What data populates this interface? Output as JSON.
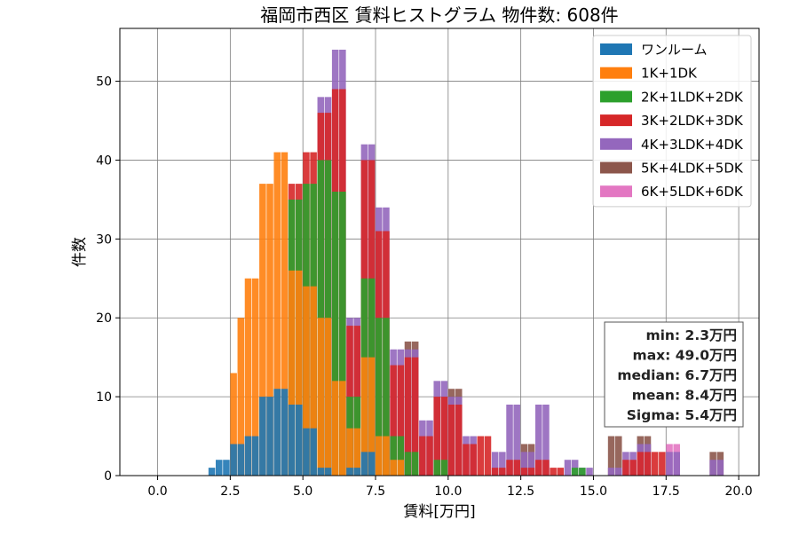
{
  "chart_data": {
    "type": "bar",
    "stacked": true,
    "title": "福岡市西区 賃料ヒストグラム 物件数: 608件",
    "xlabel": "賃料[万円]",
    "ylabel": "件数",
    "xlim": [
      -1.3,
      20.7
    ],
    "ylim": [
      0,
      56.7
    ],
    "x_ticks": [
      0,
      2.5,
      5,
      7.5,
      10,
      12.5,
      15,
      17.5,
      20
    ],
    "x_tick_labels": [
      "0.0",
      "2.5",
      "5.0",
      "7.5",
      "10.0",
      "12.5",
      "15.0",
      "17.5",
      "20.0"
    ],
    "y_ticks": [
      0,
      10,
      20,
      30,
      40,
      50
    ],
    "y_tick_labels": [
      "0",
      "10",
      "20",
      "30",
      "40",
      "50"
    ],
    "grid": true,
    "legend_position": "top-right",
    "bin_width": 0.25,
    "bar_width": 0.23,
    "series": [
      {
        "name": "ワンルーム",
        "color": "#1f77b4",
        "values": [
          [
            2.0,
            1
          ],
          [
            2.25,
            2
          ],
          [
            2.5,
            2
          ],
          [
            2.75,
            4
          ],
          [
            3.0,
            4
          ],
          [
            3.25,
            5
          ],
          [
            3.5,
            5
          ],
          [
            3.75,
            10
          ],
          [
            4.0,
            10
          ],
          [
            4.25,
            11
          ],
          [
            4.5,
            11
          ],
          [
            4.75,
            9
          ],
          [
            5.0,
            9
          ],
          [
            5.25,
            6
          ],
          [
            5.5,
            6
          ],
          [
            5.75,
            1
          ],
          [
            6.0,
            1
          ],
          [
            6.25,
            0
          ],
          [
            6.5,
            0
          ],
          [
            6.75,
            1
          ],
          [
            7.0,
            1
          ],
          [
            7.25,
            3
          ],
          [
            7.5,
            3
          ]
        ]
      },
      {
        "name": "1K+1DK",
        "color": "#ff7f0e",
        "values": [
          [
            2.75,
            13
          ],
          [
            3.0,
            20
          ],
          [
            3.25,
            25
          ],
          [
            3.5,
            25
          ],
          [
            3.75,
            37
          ],
          [
            4.0,
            37
          ],
          [
            4.25,
            41
          ],
          [
            4.5,
            41
          ],
          [
            4.75,
            26
          ],
          [
            5.0,
            26
          ],
          [
            5.25,
            24
          ],
          [
            5.5,
            24
          ],
          [
            5.75,
            20
          ],
          [
            6.0,
            20
          ],
          [
            6.25,
            12
          ],
          [
            6.5,
            12
          ],
          [
            6.75,
            6
          ],
          [
            7.0,
            6
          ],
          [
            7.25,
            15
          ],
          [
            7.5,
            15
          ],
          [
            7.75,
            5
          ],
          [
            8.0,
            5
          ],
          [
            8.25,
            2
          ],
          [
            8.5,
            2
          ]
        ]
      },
      {
        "name": "2K+1LDK+2DK",
        "color": "#2ca02c",
        "values": [
          [
            4.75,
            35
          ],
          [
            5.0,
            35
          ],
          [
            5.25,
            37
          ],
          [
            5.5,
            37
          ],
          [
            5.75,
            40
          ],
          [
            6.0,
            40
          ],
          [
            6.25,
            36
          ],
          [
            6.5,
            36
          ],
          [
            6.75,
            10
          ],
          [
            7.0,
            10
          ],
          [
            7.25,
            25
          ],
          [
            7.5,
            25
          ],
          [
            7.75,
            20
          ],
          [
            8.0,
            20
          ],
          [
            8.25,
            5
          ],
          [
            8.5,
            5
          ],
          [
            8.75,
            3
          ],
          [
            9.0,
            3
          ],
          [
            9.25,
            0
          ],
          [
            9.5,
            0
          ],
          [
            9.75,
            2
          ],
          [
            10.0,
            2
          ],
          [
            14.5,
            1
          ],
          [
            14.75,
            1
          ]
        ]
      },
      {
        "name": "3K+2LDK+3DK",
        "color": "#d62728",
        "values": [
          [
            4.75,
            37
          ],
          [
            5.0,
            37
          ],
          [
            5.25,
            41
          ],
          [
            5.5,
            41
          ],
          [
            5.75,
            46
          ],
          [
            6.0,
            46
          ],
          [
            6.25,
            49
          ],
          [
            6.5,
            49
          ],
          [
            6.75,
            19
          ],
          [
            7.0,
            19
          ],
          [
            7.25,
            40
          ],
          [
            7.5,
            40
          ],
          [
            7.75,
            31
          ],
          [
            8.0,
            31
          ],
          [
            8.25,
            14
          ],
          [
            8.5,
            14
          ],
          [
            8.75,
            15
          ],
          [
            9.0,
            15
          ],
          [
            9.25,
            5
          ],
          [
            9.5,
            5
          ],
          [
            9.75,
            10
          ],
          [
            10.0,
            10
          ],
          [
            10.25,
            9
          ],
          [
            10.5,
            9
          ],
          [
            10.75,
            4
          ],
          [
            11.0,
            4
          ],
          [
            11.25,
            5
          ],
          [
            11.5,
            5
          ],
          [
            11.75,
            1
          ],
          [
            12.0,
            1
          ],
          [
            12.25,
            2
          ],
          [
            12.5,
            2
          ],
          [
            12.75,
            1
          ],
          [
            13.0,
            1
          ],
          [
            13.25,
            2
          ],
          [
            13.5,
            2
          ],
          [
            13.75,
            1
          ],
          [
            14.0,
            1
          ],
          [
            16.25,
            2
          ],
          [
            16.5,
            2
          ],
          [
            16.75,
            3
          ],
          [
            17.0,
            3
          ],
          [
            17.25,
            3
          ],
          [
            17.5,
            3
          ]
        ]
      },
      {
        "name": "4K+3LDK+4DK",
        "color": "#9467bd",
        "values": [
          [
            5.75,
            48
          ],
          [
            6.0,
            48
          ],
          [
            6.25,
            54
          ],
          [
            6.5,
            54
          ],
          [
            6.75,
            20
          ],
          [
            7.0,
            20
          ],
          [
            7.25,
            42
          ],
          [
            7.5,
            42
          ],
          [
            7.75,
            34
          ],
          [
            8.0,
            34
          ],
          [
            8.25,
            16
          ],
          [
            8.5,
            16
          ],
          [
            8.75,
            16
          ],
          [
            9.0,
            16
          ],
          [
            9.25,
            7
          ],
          [
            9.5,
            7
          ],
          [
            9.75,
            12
          ],
          [
            10.0,
            12
          ],
          [
            10.25,
            10
          ],
          [
            10.5,
            10
          ],
          [
            10.75,
            5
          ],
          [
            11.0,
            5
          ],
          [
            11.75,
            3
          ],
          [
            12.0,
            3
          ],
          [
            12.25,
            9
          ],
          [
            12.5,
            9
          ],
          [
            12.75,
            3
          ],
          [
            13.0,
            3
          ],
          [
            13.25,
            9
          ],
          [
            13.5,
            9
          ],
          [
            14.25,
            2
          ],
          [
            14.5,
            2
          ],
          [
            14.75,
            1
          ],
          [
            15.0,
            1
          ],
          [
            15.75,
            1
          ],
          [
            16.0,
            1
          ],
          [
            16.25,
            3
          ],
          [
            16.5,
            3
          ],
          [
            16.75,
            4
          ],
          [
            17.0,
            4
          ],
          [
            17.75,
            3
          ],
          [
            18.0,
            3
          ],
          [
            19.25,
            2
          ],
          [
            19.5,
            2
          ]
        ]
      },
      {
        "name": "5K+4LDK+5DK",
        "color": "#8c564b",
        "values": [
          [
            8.75,
            17
          ],
          [
            9.0,
            17
          ],
          [
            10.25,
            11
          ],
          [
            10.5,
            11
          ],
          [
            12.75,
            4
          ],
          [
            13.0,
            4
          ],
          [
            15.75,
            5
          ],
          [
            16.0,
            5
          ],
          [
            16.75,
            5
          ],
          [
            17.0,
            5
          ],
          [
            19.25,
            3
          ],
          [
            19.5,
            3
          ]
        ]
      },
      {
        "name": "6K+5LDK+6DK",
        "color": "#e377c2",
        "values": [
          [
            17.75,
            4
          ],
          [
            18.0,
            4
          ]
        ]
      }
    ],
    "stats_box": {
      "lines": [
        "min: 2.3万円",
        "max: 49.0万円",
        "median: 6.7万円",
        "mean: 8.4万円",
        "Sigma: 5.4万円"
      ]
    }
  }
}
